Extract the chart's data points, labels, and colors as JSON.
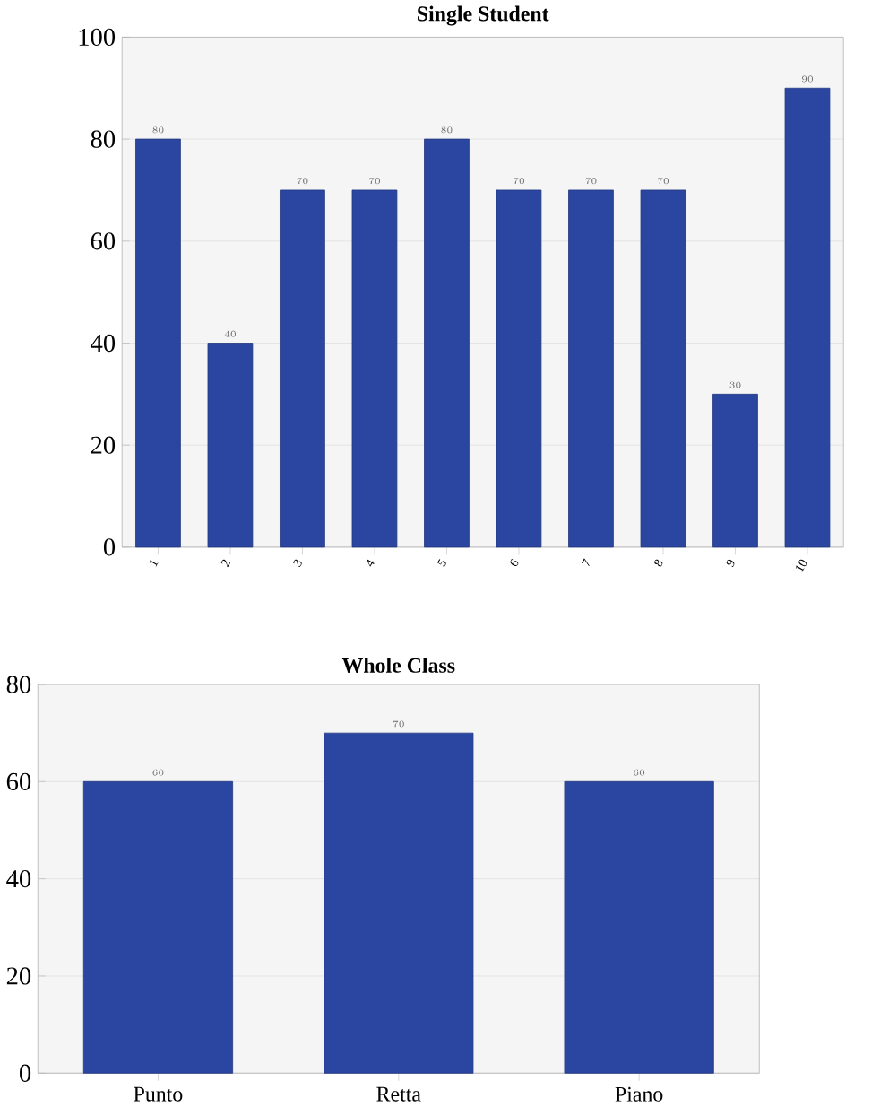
{
  "chart_data": [
    {
      "type": "bar",
      "title": "Single Student",
      "categories": [
        "1",
        "2",
        "3",
        "4",
        "5",
        "6",
        "7",
        "8",
        "9",
        "10"
      ],
      "values": [
        80,
        40,
        70,
        70,
        80,
        70,
        70,
        70,
        30,
        90
      ],
      "color": "#2b46a0",
      "ylim": [
        0,
        100
      ],
      "yticks": [
        0,
        20,
        40,
        60,
        80,
        100
      ],
      "grid": "y",
      "data_labels": true
    },
    {
      "type": "bar",
      "title": "Whole Class",
      "categories": [
        "Punto",
        "Retta",
        "Piano"
      ],
      "values": [
        60,
        70,
        60
      ],
      "color": "#2b46a0",
      "ylim": [
        0,
        80
      ],
      "yticks": [
        0,
        20,
        40,
        60,
        80
      ],
      "grid": "y",
      "data_labels": true
    }
  ]
}
